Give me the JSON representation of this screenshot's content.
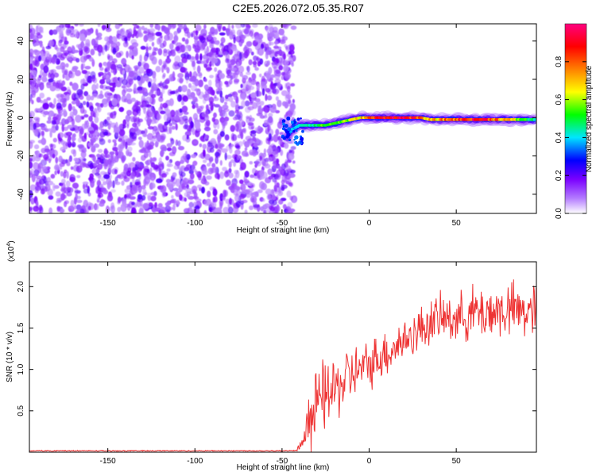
{
  "figure": {
    "title": "C2E5.2026.072.05.35.R07"
  },
  "chart_data": [
    {
      "type": "heatmap",
      "xlabel": "Height of straight line (km)",
      "ylabel": "Frequency (Hz)",
      "xlim": [
        -195,
        96
      ],
      "ylim": [
        -50,
        49
      ],
      "x_ticks": [
        -150,
        -100,
        -50,
        0,
        50
      ],
      "x_tick_labels": [
        "-150",
        "-100",
        "-50",
        "0",
        "50"
      ],
      "y_ticks": [
        -40,
        -20,
        0,
        20,
        40
      ],
      "y_tick_labels": [
        "-40",
        "-20",
        "0",
        "20",
        "40"
      ],
      "noise_region_x": [
        -195,
        -43
      ],
      "signal_track": {
        "x": [
          -47,
          -44,
          -40,
          -35,
          -30,
          -25,
          -20,
          -15,
          -10,
          -5,
          0,
          5,
          10,
          15,
          20,
          25,
          30,
          35,
          40,
          45,
          50,
          55,
          60,
          65,
          70,
          75,
          80,
          85,
          90,
          95
        ],
        "freq": [
          -10,
          -6,
          -4,
          -4,
          -4,
          -4,
          -3,
          -2,
          -1,
          0,
          0,
          0,
          0,
          0,
          0,
          0,
          0,
          -1,
          -1,
          -1,
          -1,
          -1,
          -1,
          -1,
          -1,
          -1,
          -1,
          -1,
          -1,
          -1
        ],
        "amplitude": [
          0.3,
          0.38,
          0.45,
          0.48,
          0.5,
          0.55,
          0.55,
          0.58,
          0.62,
          0.7,
          0.8,
          0.88,
          0.95,
          0.98,
          0.95,
          0.9,
          0.75,
          0.7,
          0.72,
          0.8,
          0.82,
          0.88,
          0.9,
          0.92,
          0.85,
          0.78,
          0.72,
          0.6,
          0.52,
          0.45
        ]
      },
      "colorbar": {
        "label": "Normalized spectral amplitude",
        "range": [
          0.0,
          1.0
        ],
        "ticks": [
          0.0,
          0.2,
          0.4,
          0.6,
          0.8
        ],
        "tick_labels": [
          "0.0",
          "0.2",
          "0.4",
          "0.6",
          "0.8"
        ],
        "colors": [
          "#ffffff",
          "#7a00ff",
          "#0000ff",
          "#00e5ff",
          "#00ff00",
          "#ffff00",
          "#ff8000",
          "#ff0000",
          "#ff0080"
        ]
      }
    },
    {
      "type": "line",
      "xlabel": "Height of straight line (km)",
      "ylabel": "SNR (10 * v/v)",
      "scale_label": "(x10",
      "scale_exp": "4",
      "scale_close": ")",
      "xlim": [
        -195,
        96
      ],
      "ylim": [
        0,
        2.3
      ],
      "x_ticks": [
        -150,
        -100,
        -50,
        0,
        50
      ],
      "x_tick_labels": [
        "-150",
        "-100",
        "-50",
        "0",
        "50"
      ],
      "y_ticks": [
        0.5,
        1.0,
        1.5,
        2.0
      ],
      "y_tick_labels": [
        "0.5",
        "1.0",
        "1.5",
        "2.0"
      ],
      "series": [
        {
          "color": "#ee3333",
          "x": [
            -195,
            -42,
            -38,
            -36,
            -33,
            -30,
            -27,
            -24,
            -20,
            -15,
            -10,
            -5,
            0,
            5,
            10,
            15,
            20,
            25,
            30,
            35,
            40,
            45,
            50,
            55,
            60,
            65,
            70,
            75,
            80,
            85,
            90,
            95
          ],
          "y": [
            0.02,
            0.02,
            0.1,
            0.3,
            0.45,
            0.55,
            0.65,
            0.7,
            0.75,
            0.85,
            0.95,
            1.0,
            1.05,
            1.15,
            1.2,
            1.28,
            1.35,
            1.42,
            1.5,
            1.58,
            1.6,
            1.62,
            1.62,
            1.65,
            1.68,
            1.68,
            1.7,
            1.7,
            1.72,
            1.7,
            1.7,
            1.7
          ],
          "noise_amp": [
            0.01,
            0.01,
            0.08,
            0.25,
            0.4,
            0.45,
            0.45,
            0.45,
            0.4,
            0.4,
            0.35,
            0.3,
            0.3,
            0.3,
            0.3,
            0.28,
            0.28,
            0.28,
            0.28,
            0.3,
            0.3,
            0.3,
            0.3,
            0.3,
            0.35,
            0.35,
            0.35,
            0.35,
            0.35,
            0.35,
            0.35,
            0.35
          ]
        }
      ]
    }
  ]
}
